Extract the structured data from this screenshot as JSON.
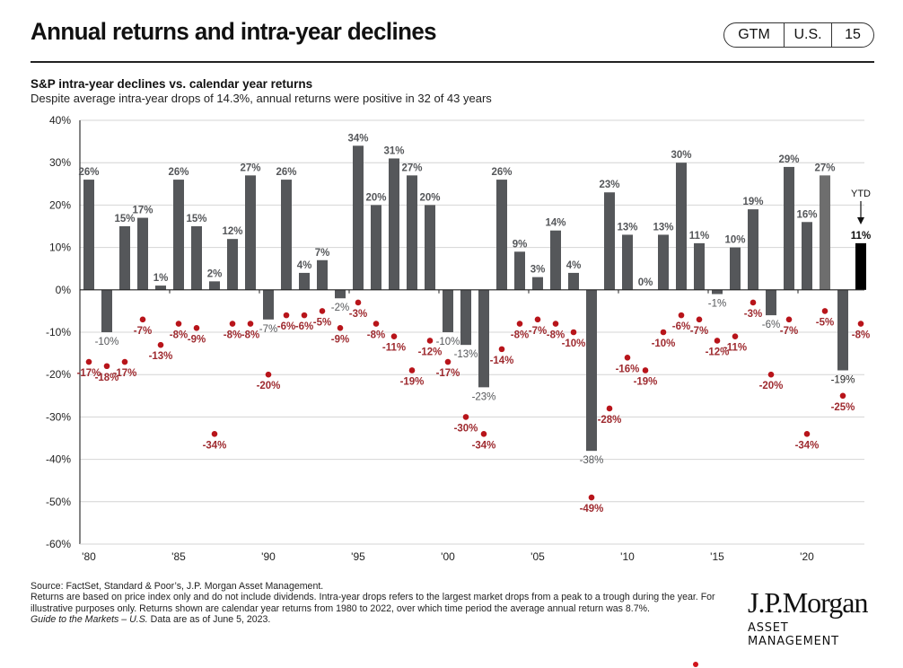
{
  "header": {
    "title": "Annual returns and intra-year declines",
    "badge": [
      "GTM",
      "U.S.",
      "15"
    ]
  },
  "colors": {
    "bar": "#55575a",
    "bar_2021": "#6e6e6e",
    "bar_ytd": "#000000",
    "decline_dot": "#b8141a",
    "decline_label": "#9e2a2f",
    "bar_label": "#55575a",
    "grid": "#d4d4d4"
  },
  "chart_data": {
    "type": "bar",
    "title": "S&P intra-year declines vs. calendar year returns",
    "subtitle": "Despite average intra-year drops of 14.3%, annual returns were positive in 32 of 43 years",
    "xlabel": "",
    "ylabel": "",
    "ylim": [
      -60,
      40
    ],
    "yticks": [
      40,
      30,
      20,
      10,
      0,
      -10,
      -20,
      -30,
      -40,
      -50,
      -60
    ],
    "ytick_labels": [
      "40%",
      "30%",
      "20%",
      "10%",
      "0%",
      "-10%",
      "-20%",
      "-30%",
      "-40%",
      "-50%",
      "-60%"
    ],
    "grid": true,
    "x": [
      1980,
      1981,
      1982,
      1983,
      1984,
      1985,
      1986,
      1987,
      1988,
      1989,
      1990,
      1991,
      1992,
      1993,
      1994,
      1995,
      1996,
      1997,
      1998,
      1999,
      2000,
      2001,
      2002,
      2003,
      2004,
      2005,
      2006,
      2007,
      2008,
      2009,
      2010,
      2011,
      2012,
      2013,
      2014,
      2015,
      2016,
      2017,
      2018,
      2019,
      2020,
      2021,
      2022,
      2023
    ],
    "xtick_years": [
      1980,
      1985,
      1990,
      1995,
      2000,
      2005,
      2010,
      2015,
      2020
    ],
    "xtick_labels": [
      "'80",
      "'85",
      "'90",
      "'95",
      "'00",
      "'05",
      "'10",
      "'15",
      "'20"
    ],
    "series": [
      {
        "name": "Calendar year return",
        "kind": "bar",
        "values": [
          26,
          -10,
          15,
          17,
          1,
          26,
          15,
          2,
          12,
          27,
          -7,
          26,
          4,
          7,
          -2,
          34,
          20,
          31,
          27,
          20,
          -10,
          -13,
          -23,
          26,
          9,
          3,
          14,
          4,
          -38,
          23,
          13,
          0,
          13,
          30,
          11,
          -1,
          10,
          19,
          -6,
          29,
          16,
          27,
          -19,
          11
        ],
        "labels": [
          "26%",
          "-10%",
          "15%",
          "17%",
          "1%",
          "26%",
          "15%",
          "2%",
          "12%",
          "27%",
          "-7%",
          "26%",
          "4%",
          "7%",
          "-2%",
          "34%",
          "20%",
          "31%",
          "27%",
          "20%",
          "-10%",
          "-13%",
          "-23%",
          "26%",
          "9%",
          "3%",
          "14%",
          "4%",
          "-38%",
          "23%",
          "13%",
          "0%",
          "13%",
          "30%",
          "11%",
          "-1%",
          "10%",
          "19%",
          "-6%",
          "29%",
          "16%",
          "27%",
          "-19%",
          "11%"
        ]
      },
      {
        "name": "Intra-year decline",
        "kind": "scatter",
        "values": [
          -17,
          -18,
          -17,
          -7,
          -13,
          -8,
          -9,
          -34,
          -8,
          -8,
          -20,
          -6,
          -6,
          -5,
          -9,
          -3,
          -8,
          -11,
          -19,
          -12,
          -17,
          -30,
          -34,
          -14,
          -8,
          -7,
          -8,
          -10,
          -49,
          -28,
          -16,
          -19,
          -10,
          -6,
          -7,
          -12,
          -11,
          -3,
          -20,
          -7,
          -34,
          -5,
          -25,
          -8
        ],
        "labels": [
          "-17%",
          "-18%",
          "-17%",
          "-7%",
          "-13%",
          "-8%",
          "-9%",
          "-34%",
          "-8%",
          "-8%",
          "-20%",
          "-6%",
          "-6%",
          "-5%",
          "-9%",
          "-3%",
          "-8%",
          "-11%",
          "-19%",
          "-12%",
          "-17%",
          "-30%",
          "-34%",
          "-14%",
          "-8%",
          "-7%",
          "-8%",
          "-10%",
          "-49%",
          "-28%",
          "-16%",
          "-19%",
          "-10%",
          "-6%",
          "-7%",
          "-12%",
          "-11%",
          "-3%",
          "-20%",
          "-7%",
          "-34%",
          "-5%",
          "-25%",
          "-8%"
        ]
      }
    ],
    "annotations": [
      {
        "text": "YTD",
        "year": 2023,
        "arrow": "down"
      }
    ]
  },
  "footer": {
    "source": "Source: FactSet, Standard & Poor’s, J.P. Morgan Asset Management.",
    "note": "Returns are based on price index only and do not include dividends. Intra-year drops refers to the largest market drops from a peak to a trough during the year. For illustrative purposes only. Returns shown are calendar year returns from 1980 to 2022, over which time period the average annual return was 8.7%.",
    "guide_italic": "Guide to the Markets – U.S.",
    "data_asof": " Data are as of June 5, 2023."
  },
  "logo": {
    "name": "J.P.Morgan",
    "sub": "ASSET MANAGEMENT"
  }
}
